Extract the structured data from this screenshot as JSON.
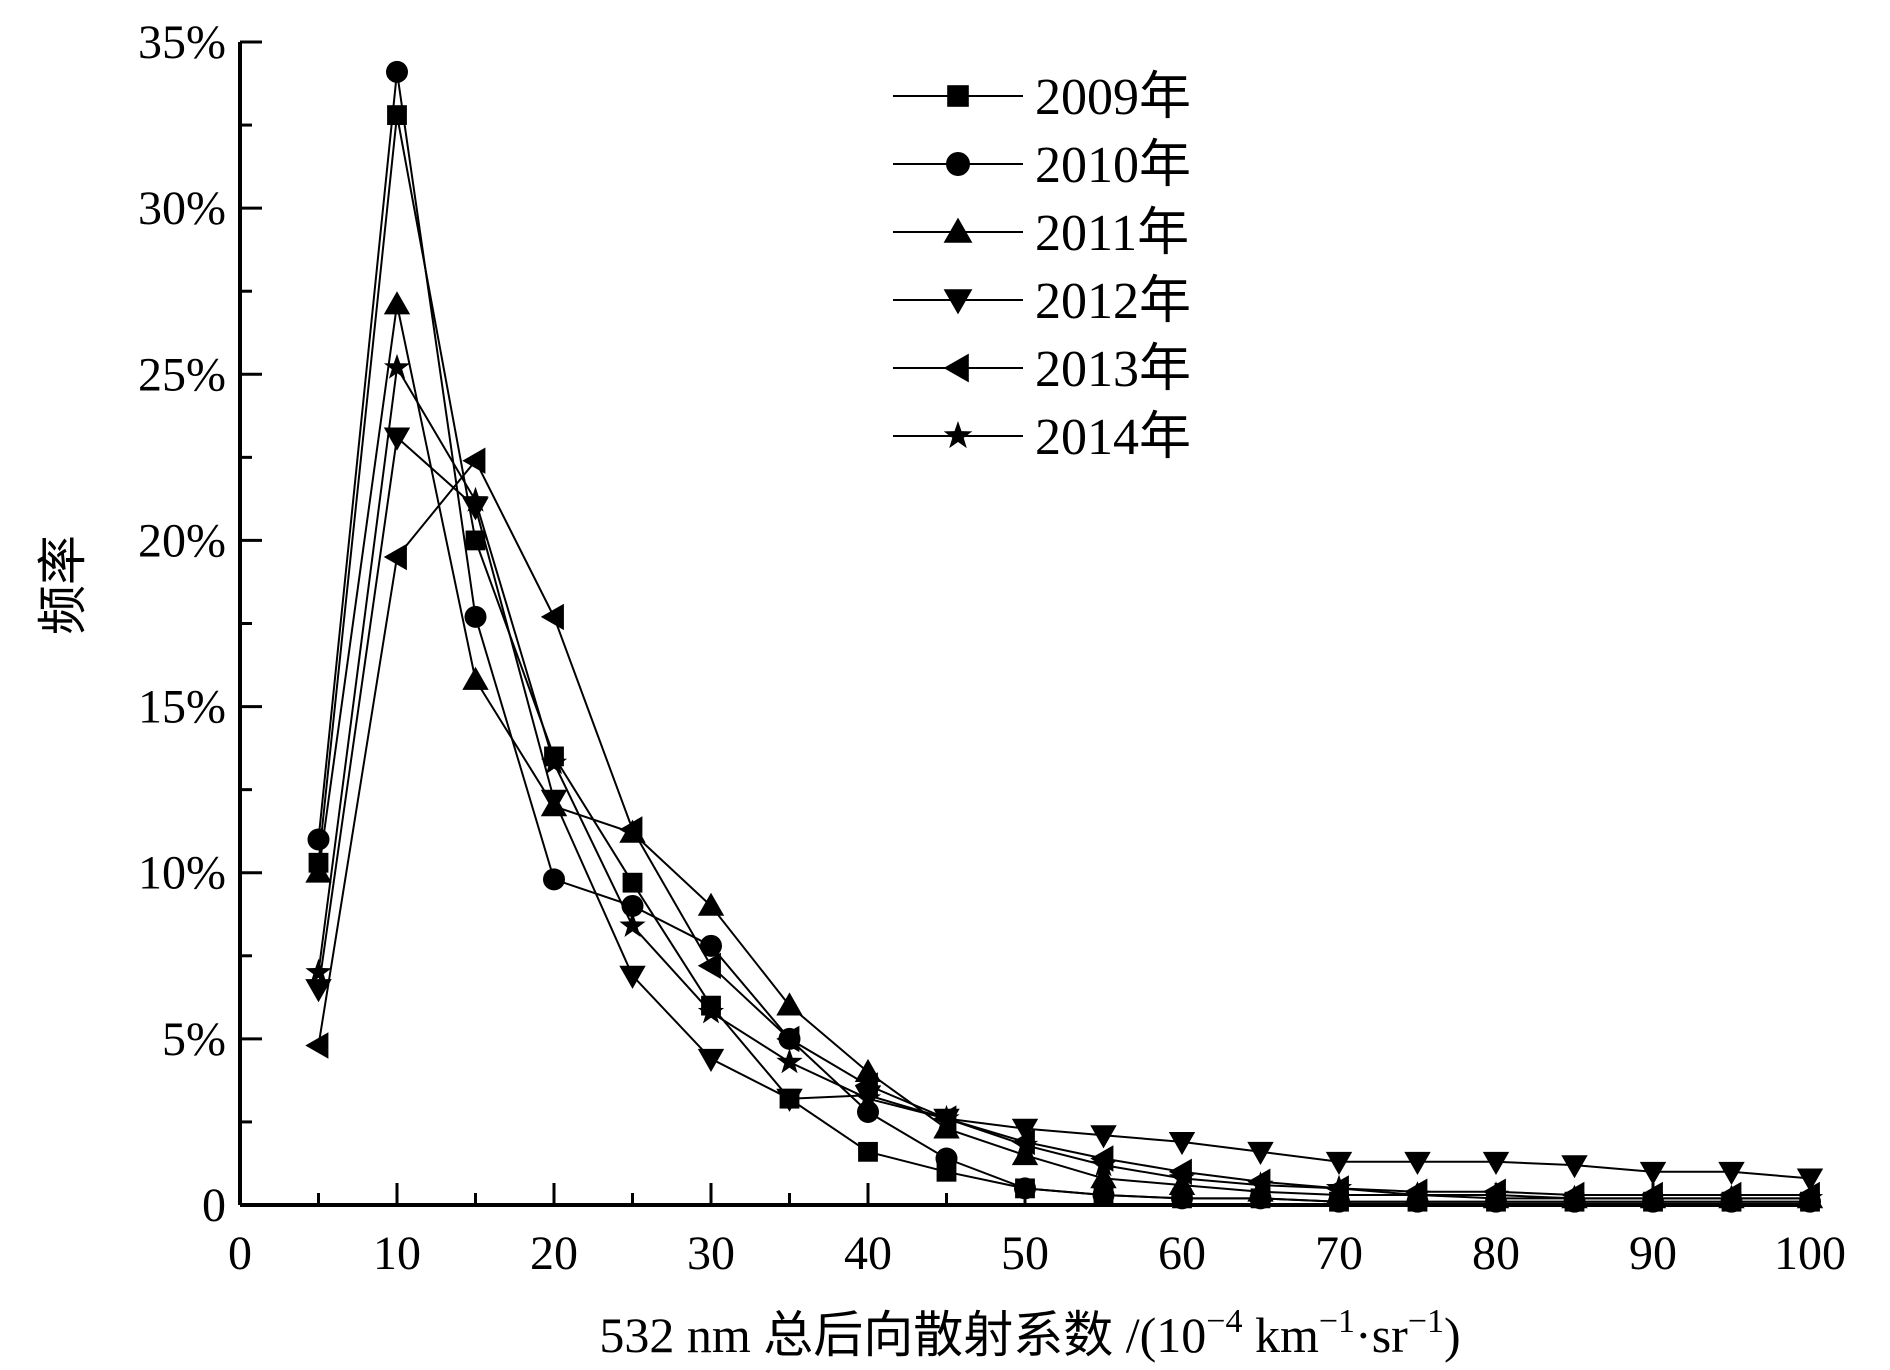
{
  "chart_data": {
    "type": "line",
    "title": "",
    "xlabel": {
      "prefix": "532 nm 总后向散射系数 /(10",
      "exp1": "−4",
      "unit1": " km",
      "exp2": "−1",
      "unit2": "·sr",
      "exp3": "−1",
      "suffix": ")"
    },
    "ylabel": "频率",
    "xlim": [
      0,
      100
    ],
    "ylim": [
      0,
      35
    ],
    "x_ticks": [
      0,
      10,
      20,
      30,
      40,
      50,
      60,
      70,
      80,
      90,
      100
    ],
    "y_ticks": [
      {
        "value": 0,
        "label": "0"
      },
      {
        "value": 5,
        "label": "5%"
      },
      {
        "value": 10,
        "label": "10%"
      },
      {
        "value": 15,
        "label": "15%"
      },
      {
        "value": 20,
        "label": "20%"
      },
      {
        "value": 25,
        "label": "25%"
      },
      {
        "value": 30,
        "label": "30%"
      },
      {
        "value": 35,
        "label": "35%"
      }
    ],
    "x": [
      5,
      10,
      15,
      20,
      25,
      30,
      35,
      40,
      45,
      50,
      55,
      60,
      65,
      70,
      75,
      80,
      85,
      90,
      95,
      100
    ],
    "legend_position": "top-center",
    "series": [
      {
        "name": "2009年",
        "marker": "square",
        "values": [
          10.3,
          32.8,
          20.0,
          13.5,
          9.7,
          6.0,
          3.2,
          1.6,
          1.0,
          0.5,
          0.3,
          0.2,
          0.2,
          0.1,
          0.1,
          0.1,
          0.1,
          0.1,
          0.1,
          0.1
        ]
      },
      {
        "name": "2010年",
        "marker": "circle",
        "values": [
          11.0,
          34.1,
          17.7,
          9.8,
          9.0,
          7.8,
          5.0,
          2.8,
          1.4,
          0.5,
          0.3,
          0.2,
          0.2,
          0.1,
          0.1,
          0.1,
          0.1,
          0.1,
          0.1,
          0.1
        ]
      },
      {
        "name": "2011年",
        "marker": "triangle-up",
        "values": [
          10.0,
          27.1,
          15.8,
          12.0,
          11.2,
          9.0,
          6.0,
          4.0,
          2.3,
          1.5,
          0.8,
          0.6,
          0.4,
          0.3,
          0.3,
          0.2,
          0.2,
          0.2,
          0.2,
          0.2
        ]
      },
      {
        "name": "2012年",
        "marker": "triangle-down",
        "values": [
          6.5,
          23.1,
          21.0,
          12.2,
          6.9,
          4.4,
          3.2,
          3.3,
          2.6,
          2.3,
          2.1,
          1.9,
          1.6,
          1.3,
          1.3,
          1.3,
          1.2,
          1.0,
          1.0,
          0.8
        ]
      },
      {
        "name": "2013年",
        "marker": "triangle-left",
        "values": [
          4.8,
          19.5,
          22.4,
          17.7,
          11.3,
          7.2,
          5.0,
          3.6,
          2.6,
          1.9,
          1.4,
          1.0,
          0.7,
          0.5,
          0.4,
          0.4,
          0.3,
          0.3,
          0.3,
          0.3
        ]
      },
      {
        "name": "2014年",
        "marker": "star",
        "values": [
          7.0,
          25.2,
          21.2,
          13.3,
          8.4,
          5.8,
          4.3,
          3.2,
          2.6,
          1.8,
          1.2,
          0.8,
          0.6,
          0.5,
          0.3,
          0.3,
          0.2,
          0.2,
          0.2,
          0.2
        ]
      }
    ]
  }
}
